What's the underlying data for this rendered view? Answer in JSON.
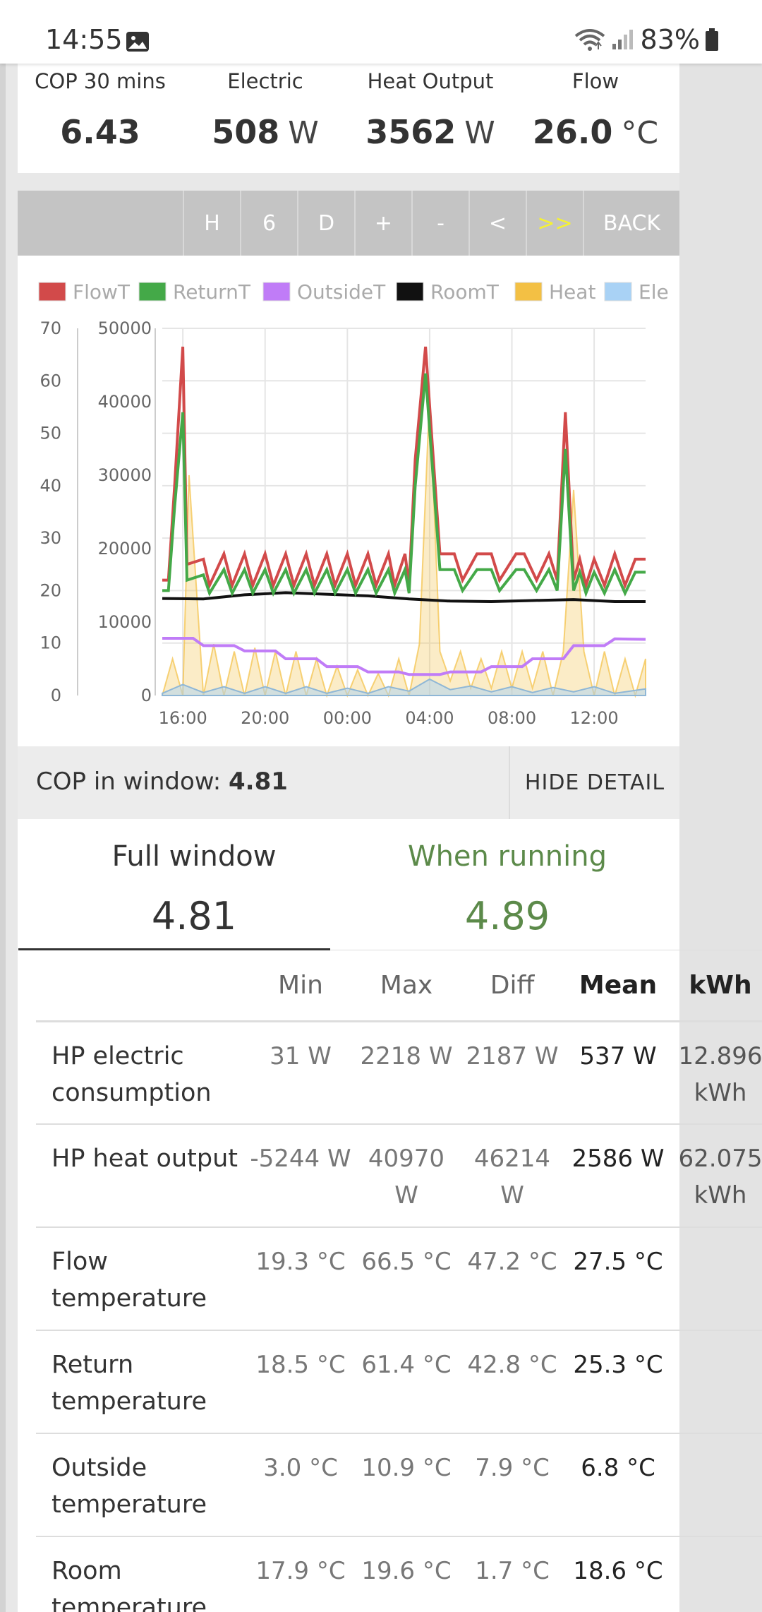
{
  "status_bar": {
    "time": "14:55",
    "battery": "83%"
  },
  "stats": [
    {
      "label": "COP 30 mins",
      "value": "6.43",
      "unit": ""
    },
    {
      "label": "Electric",
      "value": "508",
      "unit": "W"
    },
    {
      "label": "Heat Output",
      "value": "3562",
      "unit": "W"
    },
    {
      "label": "Flow",
      "value": "26.0",
      "unit": "°C"
    }
  ],
  "toolbar": {
    "buttons": [
      "H",
      "6",
      "D",
      "+",
      "-",
      "<",
      ">>",
      "BACK"
    ]
  },
  "chart_data": {
    "type": "line",
    "legend": [
      "FlowT",
      "ReturnT",
      "OutsideT",
      "RoomT",
      "Heat",
      "Ele"
    ],
    "colors": {
      "FlowT": "#d24a4a",
      "ReturnT": "#44a948",
      "OutsideT": "#c07cf7",
      "RoomT": "#111111",
      "Heat": "#f3c044",
      "Ele": "#a9d2f5"
    },
    "y_left_ticks": [
      "70",
      "60",
      "50",
      "40",
      "30",
      "20",
      "10",
      "0"
    ],
    "y_right_ticks": [
      "50000",
      "40000",
      "30000",
      "20000",
      "10000",
      "0"
    ],
    "x_ticks": [
      "16:00",
      "20:00",
      "00:00",
      "04:00",
      "08:00",
      "12:00"
    ],
    "y_left_range": [
      0,
      70
    ],
    "y_right_range": [
      0,
      50000
    ],
    "x_range_hours": [
      15,
      38.5
    ],
    "series": [
      {
        "name": "FlowT",
        "x": [
          15,
          15.3,
          15.6,
          16.0,
          16.2,
          17.0,
          17.3,
          18.0,
          18.4,
          19.0,
          19.4,
          20.0,
          20.4,
          21.0,
          21.4,
          22.0,
          22.4,
          23.0,
          23.4,
          24.0,
          24.4,
          25.0,
          25.4,
          26.0,
          26.3,
          26.8,
          27.0,
          27.3,
          27.8,
          28.5,
          29.2,
          29.6,
          30.3,
          31.0,
          31.4,
          32.2,
          32.6,
          33.2,
          33.8,
          34.2,
          34.6,
          35.0,
          35.3,
          35.6,
          36.0,
          36.5,
          37.0,
          37.5,
          38.0,
          38.5
        ],
        "y": [
          22,
          22,
          40,
          66.5,
          25,
          26,
          21,
          27,
          21,
          27,
          21,
          27,
          21,
          27,
          21,
          27,
          21,
          27,
          21,
          27,
          21,
          27,
          21,
          27,
          21,
          27,
          21,
          45,
          66.5,
          27,
          27,
          22,
          27,
          27,
          22,
          27,
          27,
          22,
          27,
          22,
          54,
          22,
          26,
          21,
          26,
          21,
          27,
          21,
          26,
          26
        ]
      },
      {
        "name": "ReturnT",
        "x": [
          15,
          15.3,
          15.6,
          16.0,
          16.2,
          17.0,
          17.3,
          18.0,
          18.4,
          19.0,
          19.4,
          20.0,
          20.4,
          21.0,
          21.4,
          22.0,
          22.4,
          23.0,
          23.4,
          24.0,
          24.4,
          25.0,
          25.4,
          26.0,
          26.3,
          26.8,
          27.0,
          27.3,
          27.8,
          28.5,
          29.2,
          29.6,
          30.3,
          31.0,
          31.4,
          32.2,
          32.6,
          33.2,
          33.8,
          34.2,
          34.6,
          35.0,
          35.3,
          35.6,
          36.0,
          36.5,
          37.0,
          37.5,
          38.0,
          38.5
        ],
        "y": [
          20,
          20,
          36,
          54,
          22,
          23,
          19.5,
          24,
          19.5,
          24,
          19.5,
          24,
          19.5,
          24,
          19.5,
          24,
          19.5,
          24,
          19.5,
          24,
          19.5,
          24,
          19.5,
          24,
          19.5,
          24,
          19.5,
          40,
          61.4,
          24,
          24,
          20,
          24,
          24,
          20,
          24,
          24,
          20,
          24,
          20,
          47,
          20,
          23.5,
          19.5,
          23.5,
          19.5,
          24,
          19.5,
          23.5,
          23.5
        ]
      },
      {
        "name": "RoomT",
        "x": [
          15,
          17,
          19,
          21,
          23,
          25,
          27,
          29,
          31,
          33,
          35,
          37,
          38.5
        ],
        "y": [
          18.5,
          18.4,
          19.2,
          19.6,
          19.3,
          19.0,
          18.4,
          18.0,
          17.9,
          18.1,
          18.3,
          17.9,
          17.9
        ]
      },
      {
        "name": "OutsideT",
        "x": [
          15,
          16.5,
          17,
          18.5,
          19,
          20.5,
          21,
          22.5,
          23,
          24.5,
          25,
          26.5,
          27,
          28.5,
          29,
          30.5,
          31,
          32.5,
          33,
          34.5,
          35,
          36.5,
          37,
          38.5
        ],
        "y": [
          10.9,
          10.9,
          9.5,
          9.5,
          8.5,
          8.5,
          7.0,
          7.0,
          5.5,
          5.5,
          4.5,
          4.5,
          4.0,
          4.0,
          4.5,
          4.5,
          5.5,
          5.5,
          7.0,
          7.0,
          9.5,
          9.5,
          10.8,
          10.7
        ]
      },
      {
        "name": "Heat",
        "x": [
          15,
          15.5,
          16,
          16.3,
          17,
          17.5,
          18,
          18.5,
          19,
          19.5,
          20,
          20.5,
          21,
          21.5,
          22,
          22.5,
          23,
          23.5,
          24,
          24.5,
          25,
          25.5,
          26,
          26.5,
          27,
          27.5,
          28,
          28.5,
          29,
          29.5,
          30,
          30.5,
          31,
          31.5,
          32,
          32.5,
          33,
          33.5,
          34,
          34.5,
          35,
          35.5,
          36,
          36.5,
          37,
          37.5,
          38,
          38.5
        ],
        "y": [
          0,
          5000,
          0,
          30000,
          0,
          7000,
          0,
          6000,
          0,
          6500,
          0,
          6000,
          0,
          6000,
          0,
          5000,
          0,
          4000,
          0,
          3500,
          0,
          3000,
          0,
          5000,
          0,
          7000,
          40970,
          6000,
          2000,
          6000,
          1000,
          5000,
          1000,
          6000,
          1000,
          6000,
          1000,
          6000,
          0,
          6000,
          28000,
          6000,
          0,
          6000,
          0,
          5000,
          0,
          5000
        ]
      },
      {
        "name": "Ele",
        "x": [
          15,
          16,
          17,
          18,
          19,
          20,
          21,
          22,
          23,
          24,
          25,
          26,
          27,
          28,
          29,
          30,
          31,
          32,
          33,
          34,
          35,
          36,
          37,
          38.5
        ],
        "y": [
          300,
          1500,
          400,
          1200,
          300,
          1200,
          300,
          1200,
          300,
          1000,
          300,
          1200,
          600,
          2218,
          800,
          1300,
          500,
          1200,
          400,
          1100,
          500,
          1200,
          300,
          900
        ]
      }
    ]
  },
  "cop_window": {
    "label": "COP in window: ",
    "value": "4.81",
    "hide_label": "HIDE DETAIL"
  },
  "summary": {
    "full": {
      "label": "Full window",
      "value": "4.81"
    },
    "running": {
      "label": "When running",
      "value": "4.89"
    }
  },
  "table": {
    "headers": [
      "",
      "Min",
      "Max",
      "Diff",
      "Mean",
      "kWh"
    ],
    "rows": [
      {
        "name": "HP electric consumption",
        "min": "31 W",
        "max": "2218 W",
        "diff": "2187 W",
        "mean": "537 W",
        "kwh": "12.896 kWh"
      },
      {
        "name": "HP heat output",
        "min": "-5244 W",
        "max": "40970 W",
        "diff": "46214 W",
        "mean": "2586 W",
        "kwh": "62.075 kWh"
      },
      {
        "name": "Flow temperature",
        "min": "19.3 °C",
        "max": "66.5 °C",
        "diff": "47.2 °C",
        "mean": "27.5 °C",
        "kwh": ""
      },
      {
        "name": "Return temperature",
        "min": "18.5 °C",
        "max": "61.4 °C",
        "diff": "42.8 °C",
        "mean": "25.3 °C",
        "kwh": ""
      },
      {
        "name": "Outside temperature",
        "min": "3.0 °C",
        "max": "10.9 °C",
        "diff": "7.9 °C",
        "mean": "6.8 °C",
        "kwh": ""
      },
      {
        "name": "Room temperature",
        "min": "17.9 °C",
        "max": "19.6 °C",
        "diff": "1.7 °C",
        "mean": "18.6 °C",
        "kwh": ""
      }
    ]
  }
}
